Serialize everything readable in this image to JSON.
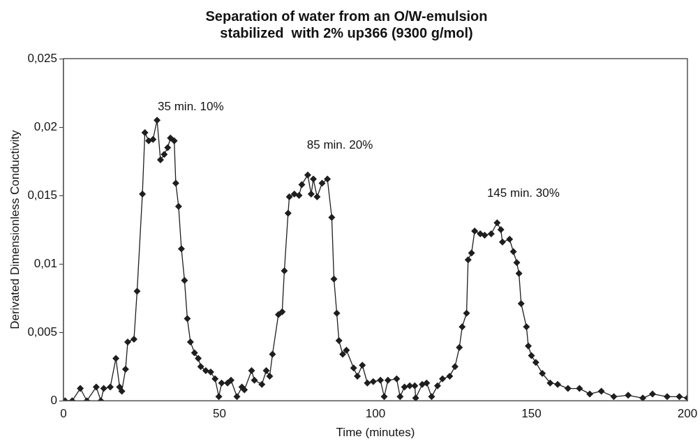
{
  "chart_data": {
    "type": "line",
    "title": "Separation of water from an O/W-emulsion\nstabilized  with 2% up366 (9300 g/mol)",
    "xlabel": "Time (minutes)",
    "ylabel": "Derivated Dimensionless Conductivity",
    "xlim": [
      0,
      200
    ],
    "xticks": [
      0,
      50,
      100,
      150,
      200
    ],
    "ylim": [
      0,
      0.025
    ],
    "yticks": [
      {
        "value": 0,
        "label": "0"
      },
      {
        "value": 0.005,
        "label": "0,005"
      },
      {
        "value": 0.01,
        "label": "0,01"
      },
      {
        "value": 0.015,
        "label": "0,015"
      },
      {
        "value": 0.02,
        "label": "0,02"
      },
      {
        "value": 0.025,
        "label": "0,025"
      }
    ],
    "grid": false,
    "legend": false,
    "marker": "diamond",
    "line_style": "solid",
    "series": [
      {
        "color": "#1e1e1e",
        "x": [
          0.5,
          2.8,
          5.4,
          7.5,
          10.5,
          12,
          12.9,
          15,
          16.8,
          18,
          18.7,
          19.9,
          20.6,
          22.6,
          23.6,
          25.3,
          26.1,
          27.3,
          28.7,
          30,
          31.1,
          32.3,
          33.4,
          34.3,
          35.5,
          36,
          36.9,
          37.8,
          38.8,
          39.7,
          40.7,
          42,
          43.2,
          44,
          45.6,
          47.2,
          48.6,
          49.8,
          50.7,
          52.6,
          53.7,
          55.6,
          57.2,
          58,
          60.3,
          61.2,
          63.6,
          65,
          66.1,
          67,
          68.9,
          70.1,
          70.8,
          72,
          72.4,
          74,
          75.5,
          76.4,
          78.3,
          79.4,
          80.1,
          81.3,
          82.9,
          84.6,
          86,
          86.7,
          87.6,
          88.3,
          89.5,
          90.7,
          93,
          94.2,
          95.8,
          97.4,
          99.3,
          101.6,
          102.8,
          104,
          106.8,
          107.9,
          109.3,
          111,
          112.6,
          112.9,
          115,
          116.4,
          118,
          119.9,
          121.5,
          123.8,
          125.5,
          126.9,
          127.8,
          129.2,
          129.7,
          130.8,
          131.8,
          133.6,
          135,
          137.1,
          139,
          140.2,
          140.7,
          143,
          144.2,
          145.3,
          146,
          146.7,
          148.4,
          149,
          150,
          151.4,
          153.5,
          156,
          158.4,
          161.7,
          165.4,
          168.7,
          172.4,
          176.4,
          181,
          185.7,
          188.8,
          193.5,
          197.4,
          200
        ],
        "values": [
          0,
          0,
          0.0009,
          0,
          0.001,
          0,
          0.0009,
          0.001,
          0.0031,
          0.001,
          0.0007,
          0.0023,
          0.0043,
          0.0045,
          0.008,
          0.0151,
          0.0196,
          0.019,
          0.0191,
          0.0205,
          0.0176,
          0.018,
          0.0185,
          0.0192,
          0.019,
          0.0159,
          0.0142,
          0.0111,
          0.0088,
          0.006,
          0.0043,
          0.0035,
          0.0031,
          0.0025,
          0.0022,
          0.0021,
          0.0016,
          0.0003,
          0.0013,
          0.0013,
          0.0015,
          0.0003,
          0.001,
          0.0008,
          0.0022,
          0.0015,
          0.0012,
          0.0022,
          0.0018,
          0.0034,
          0.0063,
          0.0065,
          0.0095,
          0.0137,
          0.0149,
          0.0151,
          0.015,
          0.0158,
          0.0165,
          0.0151,
          0.0162,
          0.0149,
          0.0159,
          0.0162,
          0.0134,
          0.0089,
          0.0064,
          0.0044,
          0.0034,
          0.0037,
          0.0024,
          0.0018,
          0.0026,
          0.0013,
          0.0014,
          0.0015,
          0.0003,
          0.0015,
          0.0016,
          0.0003,
          0.001,
          0.0011,
          0.0011,
          0.0002,
          0.0012,
          0.0013,
          0.0003,
          0.0011,
          0.0016,
          0.0018,
          0.0025,
          0.0039,
          0.0054,
          0.0064,
          0.0103,
          0.0108,
          0.0124,
          0.0122,
          0.0121,
          0.0122,
          0.013,
          0.0125,
          0.0116,
          0.0118,
          0.0109,
          0.0101,
          0.0093,
          0.0071,
          0.0054,
          0.004,
          0.0033,
          0.0028,
          0.002,
          0.0013,
          0.0012,
          0.0009,
          0.0009,
          0.0005,
          0.0007,
          0.0003,
          0.0004,
          0.0002,
          0.0005,
          0.0003,
          0.0003,
          0.0002
        ]
      }
    ],
    "annotations": [
      "35 min. 10%",
      "85 min. 20%",
      "145 min. 30%"
    ]
  }
}
